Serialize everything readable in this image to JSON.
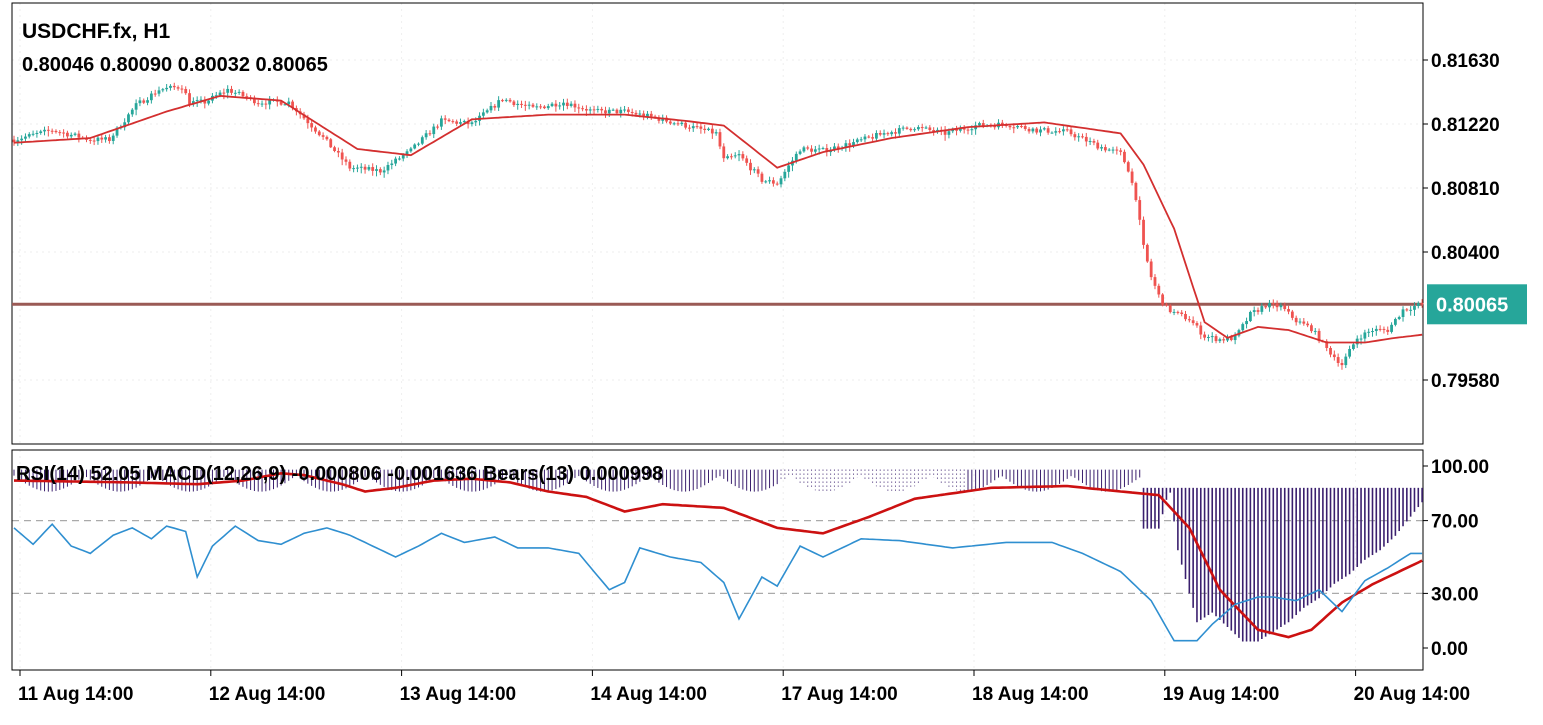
{
  "header": {
    "symbol": "USDCHF.fx, H1",
    "ohlc": "0.80046 0.80090 0.80032 0.80065",
    "indicators": "RSI(14) 52.05 MACD(12,26,9) -0.000806 -0.001636 Bears(13) 0.000998"
  },
  "price_axis": {
    "ticks": [
      "0.81630",
      "0.81220",
      "0.80810",
      "0.80400",
      "0.79580"
    ],
    "current_price": "0.80065",
    "current_price_color": "#26a69a"
  },
  "oscillator_axis": {
    "ticks": [
      "100.00",
      "70.00",
      "30.00",
      "0.00"
    ]
  },
  "time_axis": {
    "labels": [
      "11 Aug 14:00",
      "12 Aug 14:00",
      "13 Aug 14:00",
      "14 Aug 14:00",
      "17 Aug 14:00",
      "18 Aug 14:00",
      "19 Aug 14:00",
      "20 Aug 14:00"
    ]
  },
  "colors": {
    "bull": "#26a69a",
    "bear": "#ef5350",
    "ma_line": "#d32f2f",
    "rsi_line": "#2f8fd0",
    "macd_signal": "#cc1111",
    "bars_hist": "#3a1f6e",
    "level_line": "#b0b0b0"
  },
  "chart_data": {
    "type": "candlestick",
    "title": "USDCHF.fx, H1",
    "ylim": [
      0.7934,
      0.8199
    ],
    "current": 0.80065,
    "x_labels": [
      "11 Aug 14:00",
      "12 Aug 14:00",
      "13 Aug 14:00",
      "14 Aug 14:00",
      "17 Aug 14:00",
      "18 Aug 14:00",
      "19 Aug 14:00",
      "20 Aug 14:00"
    ],
    "close_path": [
      [
        0,
        0.8112
      ],
      [
        10,
        0.8118
      ],
      [
        20,
        0.8112
      ],
      [
        25,
        0.8112
      ],
      [
        32,
        0.8134
      ],
      [
        38,
        0.8144
      ],
      [
        44,
        0.8146
      ],
      [
        46,
        0.8136
      ],
      [
        50,
        0.8136
      ],
      [
        56,
        0.8144
      ],
      [
        64,
        0.8136
      ],
      [
        72,
        0.8136
      ],
      [
        80,
        0.8116
      ],
      [
        88,
        0.8094
      ],
      [
        96,
        0.8092
      ],
      [
        104,
        0.8105
      ],
      [
        112,
        0.8124
      ],
      [
        120,
        0.8122
      ],
      [
        128,
        0.8138
      ],
      [
        136,
        0.8132
      ],
      [
        144,
        0.8136
      ],
      [
        152,
        0.813
      ],
      [
        160,
        0.813
      ],
      [
        168,
        0.8126
      ],
      [
        176,
        0.8121
      ],
      [
        184,
        0.8116
      ],
      [
        186,
        0.8099
      ],
      [
        190,
        0.8102
      ],
      [
        196,
        0.8086
      ],
      [
        200,
        0.8084
      ],
      [
        206,
        0.8106
      ],
      [
        212,
        0.8105
      ],
      [
        220,
        0.811
      ],
      [
        228,
        0.8116
      ],
      [
        236,
        0.812
      ],
      [
        244,
        0.8116
      ],
      [
        252,
        0.8121
      ],
      [
        260,
        0.8122
      ],
      [
        268,
        0.8118
      ],
      [
        276,
        0.8117
      ],
      [
        284,
        0.8108
      ],
      [
        290,
        0.8103
      ],
      [
        292,
        0.8093
      ],
      [
        294,
        0.8075
      ],
      [
        296,
        0.8043
      ],
      [
        298,
        0.8024
      ],
      [
        300,
        0.8012
      ],
      [
        302,
        0.8004
      ],
      [
        304,
        0.8001
      ],
      [
        308,
        0.7997
      ],
      [
        312,
        0.7986
      ],
      [
        316,
        0.7984
      ],
      [
        320,
        0.7985
      ],
      [
        324,
        0.8
      ],
      [
        328,
        0.8006
      ],
      [
        332,
        0.8005
      ],
      [
        336,
        0.7996
      ],
      [
        340,
        0.7991
      ],
      [
        344,
        0.7978
      ],
      [
        348,
        0.7968
      ],
      [
        352,
        0.7985
      ],
      [
        356,
        0.799
      ],
      [
        360,
        0.799
      ],
      [
        364,
        0.8003
      ],
      [
        368,
        0.8006
      ],
      [
        369,
        0.80065
      ]
    ],
    "ma_path": [
      [
        0,
        0.811
      ],
      [
        20,
        0.8113
      ],
      [
        40,
        0.813
      ],
      [
        54,
        0.814
      ],
      [
        70,
        0.8137
      ],
      [
        90,
        0.8106
      ],
      [
        104,
        0.8102
      ],
      [
        120,
        0.8125
      ],
      [
        140,
        0.8128
      ],
      [
        160,
        0.8128
      ],
      [
        176,
        0.8124
      ],
      [
        186,
        0.8121
      ],
      [
        200,
        0.8094
      ],
      [
        212,
        0.8104
      ],
      [
        230,
        0.8113
      ],
      [
        250,
        0.812
      ],
      [
        270,
        0.8123
      ],
      [
        290,
        0.8116
      ],
      [
        296,
        0.8096
      ],
      [
        304,
        0.8055
      ],
      [
        312,
        0.7995
      ],
      [
        318,
        0.7985
      ],
      [
        326,
        0.7992
      ],
      [
        334,
        0.799
      ],
      [
        344,
        0.7982
      ],
      [
        354,
        0.7982
      ],
      [
        362,
        0.7985
      ],
      [
        369,
        0.7987
      ]
    ],
    "rsi": [
      [
        0,
        66
      ],
      [
        5,
        57
      ],
      [
        10,
        68
      ],
      [
        15,
        56
      ],
      [
        20,
        52
      ],
      [
        26,
        62
      ],
      [
        31,
        66
      ],
      [
        36,
        60
      ],
      [
        40,
        67
      ],
      [
        45,
        64
      ],
      [
        48,
        39
      ],
      [
        52,
        56
      ],
      [
        58,
        67
      ],
      [
        64,
        59
      ],
      [
        70,
        57
      ],
      [
        76,
        63
      ],
      [
        82,
        66
      ],
      [
        88,
        62
      ],
      [
        94,
        56
      ],
      [
        100,
        50
      ],
      [
        106,
        56
      ],
      [
        112,
        63
      ],
      [
        118,
        58
      ],
      [
        126,
        61
      ],
      [
        132,
        55
      ],
      [
        140,
        55
      ],
      [
        148,
        52
      ],
      [
        156,
        32
      ],
      [
        160,
        36
      ],
      [
        164,
        55
      ],
      [
        172,
        50
      ],
      [
        180,
        47
      ],
      [
        186,
        36
      ],
      [
        190,
        16
      ],
      [
        196,
        39
      ],
      [
        200,
        34
      ],
      [
        206,
        56
      ],
      [
        212,
        50
      ],
      [
        222,
        60
      ],
      [
        232,
        59
      ],
      [
        246,
        55
      ],
      [
        260,
        58
      ],
      [
        272,
        58
      ],
      [
        280,
        52
      ],
      [
        290,
        42
      ],
      [
        298,
        26
      ],
      [
        304,
        4
      ],
      [
        310,
        4
      ],
      [
        314,
        13
      ],
      [
        320,
        24
      ],
      [
        326,
        28
      ],
      [
        330,
        28
      ],
      [
        336,
        26
      ],
      [
        342,
        32
      ],
      [
        348,
        20
      ],
      [
        354,
        37
      ],
      [
        360,
        44
      ],
      [
        366,
        52
      ],
      [
        369,
        52
      ]
    ],
    "signal": [
      [
        0,
        92
      ],
      [
        30,
        91
      ],
      [
        48,
        90
      ],
      [
        60,
        92
      ],
      [
        70,
        96
      ],
      [
        76,
        95
      ],
      [
        86,
        90
      ],
      [
        92,
        86
      ],
      [
        100,
        88
      ],
      [
        110,
        92
      ],
      [
        120,
        93
      ],
      [
        130,
        91
      ],
      [
        140,
        86
      ],
      [
        150,
        83
      ],
      [
        160,
        75
      ],
      [
        170,
        79
      ],
      [
        186,
        77
      ],
      [
        200,
        66
      ],
      [
        212,
        63
      ],
      [
        224,
        72
      ],
      [
        236,
        82
      ],
      [
        256,
        88
      ],
      [
        276,
        89
      ],
      [
        290,
        86
      ],
      [
        300,
        84
      ],
      [
        308,
        66
      ],
      [
        316,
        32
      ],
      [
        326,
        10
      ],
      [
        334,
        6
      ],
      [
        340,
        10
      ],
      [
        348,
        25
      ],
      [
        356,
        35
      ],
      [
        364,
        43
      ],
      [
        369,
        48
      ]
    ],
    "bars": [
      [
        300,
        34
      ],
      [
        305,
        -26
      ],
      [
        310,
        -56
      ],
      [
        314,
        -52
      ],
      [
        318,
        -58
      ],
      [
        322,
        -64
      ],
      [
        326,
        -64
      ],
      [
        330,
        -60
      ],
      [
        334,
        -56
      ],
      [
        338,
        -50
      ],
      [
        342,
        -46
      ],
      [
        346,
        -40
      ],
      [
        350,
        -36
      ],
      [
        354,
        -30
      ],
      [
        358,
        -26
      ],
      [
        362,
        -20
      ],
      [
        366,
        -12
      ],
      [
        369,
        -6
      ]
    ],
    "notes": ""
  }
}
